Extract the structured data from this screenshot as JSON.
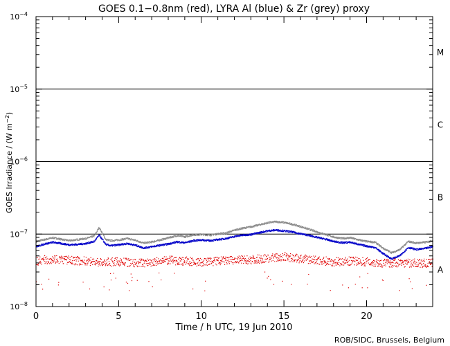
{
  "chart_data": {
    "type": "scatter",
    "title": "GOES 0.1−0.8nm (red), LYRA Al (blue) & Zr (grey) proxy",
    "xlabel": "Time / h UTC, 19 Jun 2010",
    "ylabel_main": "GOES Irradiance / (W m",
    "ylabel_sup": "−2",
    "ylabel_end": ")",
    "xlim": [
      0,
      24
    ],
    "ylim": [
      1e-08,
      0.0001
    ],
    "yscale": "log",
    "x_ticks": [
      {
        "value": 0,
        "label": "0"
      },
      {
        "value": 5,
        "label": "5"
      },
      {
        "value": 10,
        "label": "10"
      },
      {
        "value": 15,
        "label": "15"
      },
      {
        "value": 20,
        "label": "20"
      }
    ],
    "y_ticks": [
      {
        "exp": -8,
        "base": "10",
        "sup": "−8"
      },
      {
        "exp": -7,
        "base": "10",
        "sup": "−7"
      },
      {
        "exp": -6,
        "base": "10",
        "sup": "−6"
      },
      {
        "exp": -5,
        "base": "10",
        "sup": "−5"
      },
      {
        "exp": -4,
        "base": "10",
        "sup": "−4"
      }
    ],
    "class_lines": [
      1e-07,
      1e-06,
      1e-05
    ],
    "flare_classes": [
      {
        "label": "A",
        "value": 3.2e-08
      },
      {
        "label": "B",
        "value": 3.2e-07
      },
      {
        "label": "C",
        "value": 3.2e-06
      },
      {
        "label": "M",
        "value": 3.2e-05
      }
    ],
    "credit": "ROB/SIDC, Brussels, Belgium",
    "series": [
      {
        "name": "LYRA Zr proxy",
        "color": "#8c8c8c",
        "x": [
          0,
          0.5,
          1,
          1.5,
          2,
          2.5,
          3,
          3.5,
          3.8,
          4.2,
          4.5,
          5,
          5.5,
          6,
          6.5,
          7,
          7.5,
          8,
          8.5,
          9,
          9.5,
          10,
          10.5,
          11,
          11.5,
          12,
          12.5,
          13,
          13.5,
          14,
          14.5,
          15,
          15.5,
          16,
          16.5,
          17,
          17.5,
          18,
          18.5,
          19,
          19.5,
          20,
          20.5,
          21,
          21.5,
          22,
          22.5,
          23,
          23.5,
          24
        ],
        "y": [
          8e-08,
          8.5e-08,
          9e-08,
          8.6e-08,
          8.2e-08,
          8.5e-08,
          8.8e-08,
          9.5e-08,
          1.25e-07,
          8.5e-08,
          8.2e-08,
          8.4e-08,
          8.8e-08,
          8.3e-08,
          7.6e-08,
          7.9e-08,
          8.4e-08,
          9e-08,
          9.6e-08,
          9.3e-08,
          9.9e-08,
          1e-07,
          9.8e-08,
          1.02e-07,
          1.05e-07,
          1.15e-07,
          1.22e-07,
          1.28e-07,
          1.36e-07,
          1.45e-07,
          1.5e-07,
          1.46e-07,
          1.38e-07,
          1.28e-07,
          1.18e-07,
          1.08e-07,
          1e-07,
          9.2e-08,
          8.8e-08,
          9e-08,
          8.4e-08,
          8e-08,
          7.8e-08,
          6.4e-08,
          5.6e-08,
          6.2e-08,
          8e-08,
          7.6e-08,
          7.8e-08,
          8.2e-08
        ]
      },
      {
        "name": "LYRA Al proxy",
        "color": "#0000c8",
        "x": [
          0,
          0.5,
          1,
          1.5,
          2,
          2.5,
          3,
          3.5,
          3.8,
          4.2,
          4.5,
          5,
          5.5,
          6,
          6.5,
          7,
          7.5,
          8,
          8.5,
          9,
          9.5,
          10,
          10.5,
          11,
          11.5,
          12,
          12.5,
          13,
          13.5,
          14,
          14.5,
          15,
          15.5,
          16,
          16.5,
          17,
          17.5,
          18,
          18.5,
          19,
          19.5,
          20,
          20.5,
          21,
          21.5,
          22,
          22.5,
          23,
          23.5,
          24
        ],
        "y": [
          6.8e-08,
          7.4e-08,
          7.8e-08,
          7.5e-08,
          7.2e-08,
          7.3e-08,
          7.5e-08,
          8e-08,
          9.8e-08,
          7.3e-08,
          7e-08,
          7.2e-08,
          7.5e-08,
          7.1e-08,
          6.5e-08,
          6.8e-08,
          7.1e-08,
          7.4e-08,
          7.9e-08,
          7.7e-08,
          8.2e-08,
          8.4e-08,
          8.2e-08,
          8.5e-08,
          8.8e-08,
          9.4e-08,
          9.8e-08,
          1e-07,
          1.06e-07,
          1.12e-07,
          1.15e-07,
          1.12e-07,
          1.08e-07,
          1.02e-07,
          9.7e-08,
          9.1e-08,
          8.6e-08,
          8e-08,
          7.7e-08,
          7.8e-08,
          7.3e-08,
          6.9e-08,
          6.6e-08,
          5.4e-08,
          4.6e-08,
          5.1e-08,
          6.6e-08,
          6.2e-08,
          6.4e-08,
          6.8e-08
        ]
      },
      {
        "name": "GOES 0.1−0.8nm",
        "color": "#e00000",
        "x": [
          0,
          1,
          2,
          3,
          4,
          5,
          6,
          7,
          8,
          9,
          10,
          11,
          12,
          13,
          14,
          15,
          16,
          17,
          18,
          19,
          20,
          21,
          22,
          23,
          24
        ],
        "y": [
          4.3e-08,
          4.6e-08,
          4.4e-08,
          4.3e-08,
          4.1e-08,
          4.2e-08,
          4e-08,
          4.1e-08,
          4.4e-08,
          4.3e-08,
          4.1e-08,
          4.3e-08,
          4.4e-08,
          4.5e-08,
          4.7e-08,
          4.9e-08,
          4.6e-08,
          4.4e-08,
          4.2e-08,
          4.3e-08,
          4.2e-08,
          4e-08,
          4.1e-08,
          4e-08,
          4e-08
        ]
      }
    ]
  }
}
